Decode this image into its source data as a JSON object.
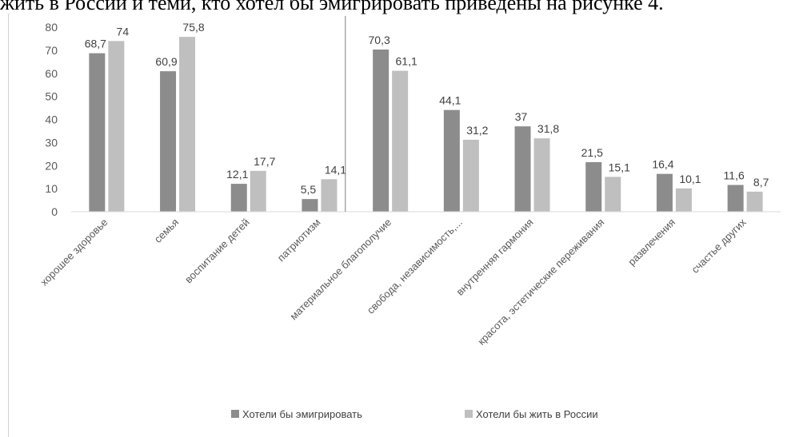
{
  "document": {
    "cutoff_text": "жить в России и теми, кто хотел бы эмигрировать приведены на рисунке 4."
  },
  "chart_data": {
    "type": "bar",
    "title": "",
    "xlabel": "",
    "ylabel": "",
    "ylim": [
      0,
      80
    ],
    "yticks": [
      0,
      10,
      20,
      30,
      40,
      50,
      60,
      70,
      80
    ],
    "grid": false,
    "legend_position": "bottom",
    "categories": [
      "хорошее здоровье",
      "семья",
      "воспитание детей",
      "патриотизм",
      "материальное благополучие",
      "свобода, независимость,...",
      "внутренняя гармония",
      "красота, эстетические переживания",
      "развлечения",
      "счастье других"
    ],
    "series": [
      {
        "name": "Хотели бы эмигрировать",
        "color": "#8c8c8c",
        "values": [
          68.7,
          60.9,
          12.1,
          5.5,
          70.3,
          44.1,
          37,
          21.5,
          16.4,
          11.6
        ],
        "labels": [
          "68,7",
          "60,9",
          "12,1",
          "5,5",
          "70,3",
          "44,1",
          "37",
          "21,5",
          "16,4",
          "11,6"
        ]
      },
      {
        "name": "Хотели бы жить в России",
        "color": "#bfbfbf",
        "values": [
          74,
          75.8,
          17.7,
          14.1,
          61.1,
          31.2,
          31.8,
          15.1,
          10.1,
          8.7
        ],
        "labels": [
          "74",
          "75,8",
          "17,7",
          "14,1",
          "61,1",
          "31,2",
          "31,8",
          "15,1",
          "10,1",
          "8,7"
        ]
      }
    ],
    "divider_after_category": "патриотизм"
  }
}
